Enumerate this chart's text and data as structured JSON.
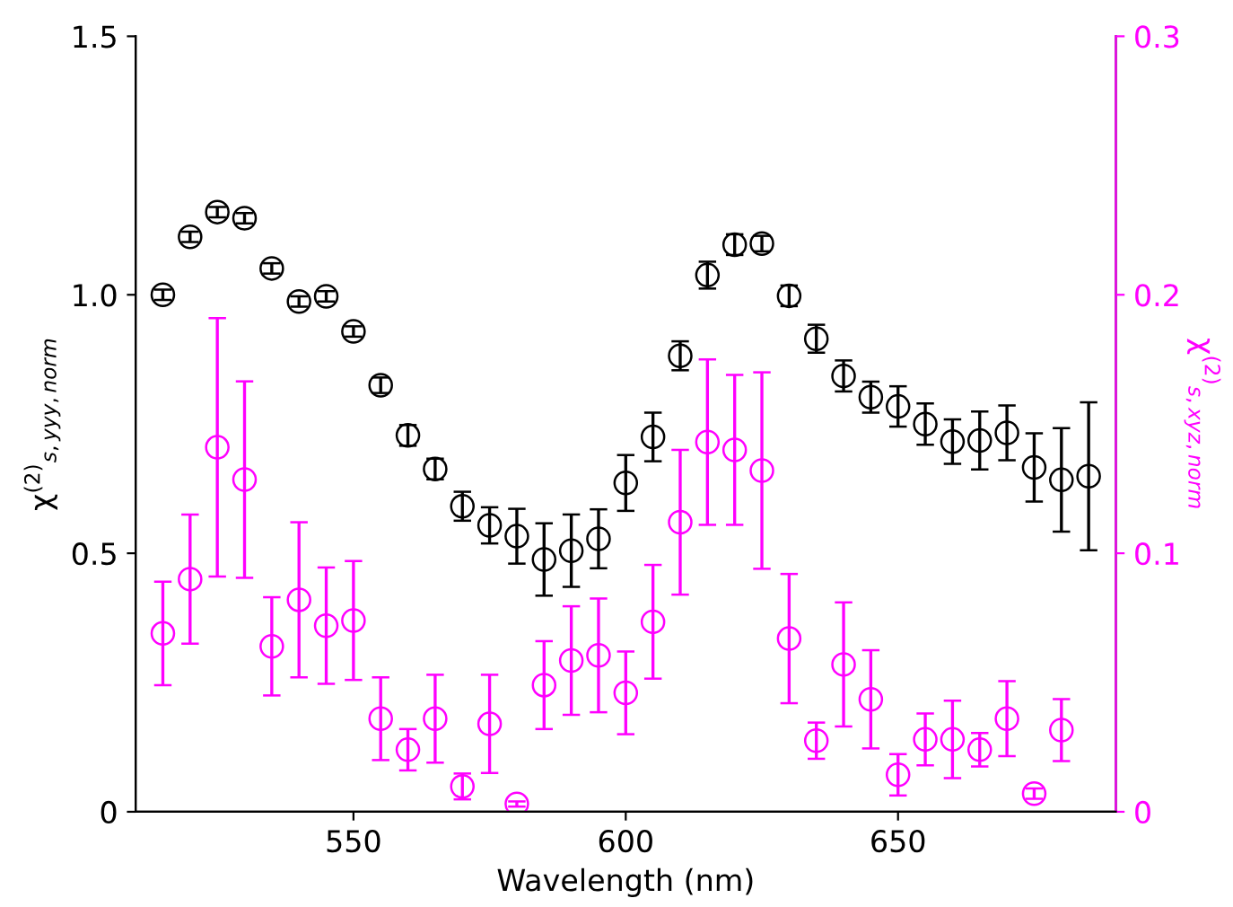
{
  "chart_data": {
    "type": "scatter",
    "xlabel": "Wavelength (nm)",
    "ylabel": "χ$^{(2)}$$_{s,yyy,norm}$",
    "y2label": "χ$^{(2)}$$_{s,xyz,norm}$",
    "xlim": [
      510,
      690
    ],
    "xticks": [
      550,
      600,
      650
    ],
    "ylim": [
      0,
      1.5
    ],
    "yticks": [
      0,
      0.5,
      {
        "value": 1.0,
        "label": "1.0"
      },
      {
        "value": 1.5,
        "label": "1.5"
      }
    ],
    "y2lim": [
      0,
      0.3
    ],
    "y2ticks": [
      0,
      0.1,
      0.2,
      0.3
    ],
    "marker": "circle",
    "grid": false,
    "legend": false,
    "series": [
      {
        "color": "#000000",
        "x": [
          515,
          520,
          525,
          530,
          535,
          540,
          545,
          550,
          555,
          560,
          565,
          570,
          575,
          580,
          585,
          590,
          595,
          600,
          605,
          610,
          615,
          620,
          625,
          630,
          635,
          640,
          645,
          650,
          655,
          660,
          665,
          670,
          675,
          680,
          685
        ],
        "values": [
          1.0,
          1.112,
          1.16,
          1.148,
          1.051,
          0.987,
          0.997,
          0.929,
          0.825,
          0.728,
          0.663,
          0.591,
          0.554,
          0.533,
          0.488,
          0.505,
          0.528,
          0.636,
          0.725,
          0.882,
          1.038,
          1.097,
          1.099,
          0.998,
          0.915,
          0.843,
          0.802,
          0.784,
          0.75,
          0.716,
          0.718,
          0.733,
          0.666,
          0.642,
          0.649
        ],
        "errors": [
          0.01,
          0.01,
          0.01,
          0.01,
          0.01,
          0.01,
          0.01,
          0.01,
          0.015,
          0.02,
          0.02,
          0.028,
          0.035,
          0.053,
          0.07,
          0.07,
          0.057,
          0.054,
          0.047,
          0.028,
          0.026,
          0.02,
          0.015,
          0.02,
          0.027,
          0.03,
          0.03,
          0.039,
          0.04,
          0.043,
          0.056,
          0.053,
          0.066,
          0.1,
          0.143
        ]
      },
      {
        "color": "#ff00ff",
        "axis": "y2",
        "x": [
          515,
          520,
          525,
          530,
          535,
          540,
          545,
          550,
          555,
          560,
          565,
          570,
          575,
          580,
          585,
          590,
          595,
          600,
          605,
          610,
          615,
          620,
          625,
          630,
          635,
          640,
          645,
          650,
          655,
          660,
          665,
          670,
          675,
          680
        ],
        "values": [
          0.069,
          0.09,
          0.141,
          0.1285,
          0.064,
          0.082,
          0.072,
          0.074,
          0.036,
          0.024,
          0.036,
          0.0098,
          0.034,
          0.003,
          0.049,
          0.0585,
          0.0605,
          0.046,
          0.0735,
          0.112,
          0.143,
          0.14,
          0.132,
          0.067,
          0.0275,
          0.057,
          0.0435,
          0.0143,
          0.028,
          0.028,
          0.024,
          0.036,
          0.007,
          0.0316
        ],
        "errors": [
          0.02,
          0.025,
          0.05,
          0.038,
          0.019,
          0.03,
          0.0225,
          0.023,
          0.016,
          0.008,
          0.017,
          0.005,
          0.019,
          0.001,
          0.017,
          0.021,
          0.022,
          0.016,
          0.022,
          0.028,
          0.032,
          0.029,
          0.038,
          0.025,
          0.007,
          0.024,
          0.019,
          0.008,
          0.01,
          0.015,
          0.0065,
          0.0145,
          0.002,
          0.012
        ]
      }
    ]
  }
}
